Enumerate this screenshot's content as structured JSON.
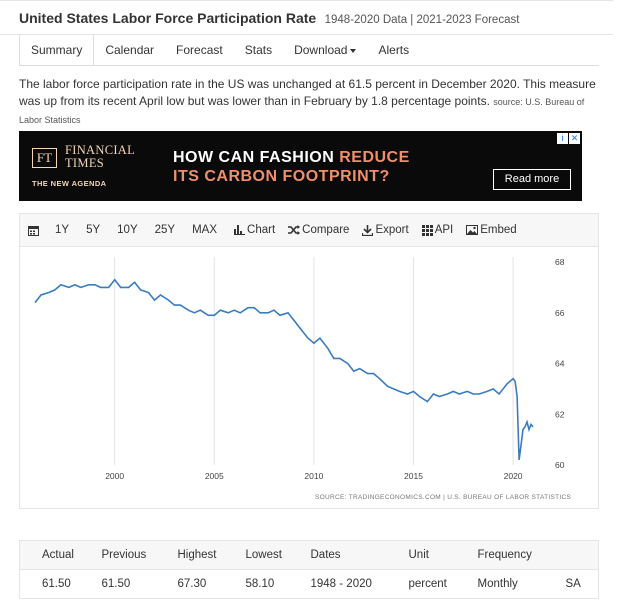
{
  "header": {
    "title": "United States Labor Force Participation Rate",
    "subtitle": "1948-2020 Data | 2021-2023 Forecast"
  },
  "tabs": [
    {
      "label": "Summary",
      "active": true
    },
    {
      "label": "Calendar"
    },
    {
      "label": "Forecast"
    },
    {
      "label": "Stats"
    },
    {
      "label": "Download"
    },
    {
      "label": "Alerts"
    }
  ],
  "summary": {
    "text": "The labor force participation rate in the US was unchanged at 61.5 percent in December 2020. This measure was up from its recent April low but was lower than in February by 1.8 percentage points.",
    "source": "source: U.S. Bureau of Labor Statistics"
  },
  "ad": {
    "logo": "FT",
    "brand_line1": "FINANCIAL",
    "brand_line2": "TIMES",
    "tagline": "THE NEW AGENDA",
    "headline_part1": "HOW CAN FASHION ",
    "headline_part2": "REDUCE",
    "headline_line2": "ITS CARBON FOOTPRINT?",
    "cta": "Read more",
    "badge_info": "i",
    "badge_close": "✕",
    "accent_color": "#f28e6a"
  },
  "toolbar": {
    "ranges": [
      "1Y",
      "5Y",
      "10Y",
      "25Y",
      "MAX"
    ],
    "chart": "Chart",
    "compare": "Compare",
    "export": "Export",
    "api": "API",
    "embed": "Embed"
  },
  "chart_data": {
    "type": "line",
    "title": "",
    "xlabel": "",
    "ylabel": "",
    "source_note": "SOURCE: TRADINGECONOMICS.COM | U.S. BUREAU OF LABOR STATISTICS",
    "xlim": [
      1995.9,
      2021.1
    ],
    "ylim": [
      60,
      68
    ],
    "x_ticks": [
      2000,
      2005,
      2010,
      2015,
      2020
    ],
    "y_ticks": [
      60,
      62,
      64,
      66,
      68
    ],
    "y_axis_side": "right",
    "grid": "vertical",
    "line_color": "#3a7cbf",
    "series": [
      {
        "points": [
          [
            1996.0,
            66.4
          ],
          [
            1996.3,
            66.7
          ],
          [
            1996.7,
            66.8
          ],
          [
            1997.0,
            66.9
          ],
          [
            1997.3,
            67.1
          ],
          [
            1997.7,
            67.0
          ],
          [
            1998.0,
            67.1
          ],
          [
            1998.3,
            67.0
          ],
          [
            1998.7,
            67.1
          ],
          [
            1999.0,
            67.1
          ],
          [
            1999.3,
            67.0
          ],
          [
            1999.7,
            67.0
          ],
          [
            2000.0,
            67.3
          ],
          [
            2000.3,
            67.0
          ],
          [
            2000.7,
            67.0
          ],
          [
            2001.0,
            67.2
          ],
          [
            2001.3,
            66.9
          ],
          [
            2001.7,
            66.8
          ],
          [
            2002.0,
            66.5
          ],
          [
            2002.3,
            66.7
          ],
          [
            2002.7,
            66.5
          ],
          [
            2003.0,
            66.3
          ],
          [
            2003.3,
            66.3
          ],
          [
            2003.7,
            66.1
          ],
          [
            2004.0,
            66.0
          ],
          [
            2004.3,
            66.1
          ],
          [
            2004.7,
            65.9
          ],
          [
            2005.0,
            65.9
          ],
          [
            2005.3,
            66.1
          ],
          [
            2005.7,
            66.0
          ],
          [
            2006.0,
            66.1
          ],
          [
            2006.3,
            66.0
          ],
          [
            2006.7,
            66.2
          ],
          [
            2007.0,
            66.2
          ],
          [
            2007.3,
            66.0
          ],
          [
            2007.7,
            66.0
          ],
          [
            2008.0,
            66.1
          ],
          [
            2008.3,
            65.9
          ],
          [
            2008.7,
            66.0
          ],
          [
            2009.0,
            65.7
          ],
          [
            2009.3,
            65.4
          ],
          [
            2009.7,
            65.0
          ],
          [
            2010.0,
            64.8
          ],
          [
            2010.3,
            65.0
          ],
          [
            2010.7,
            64.6
          ],
          [
            2011.0,
            64.2
          ],
          [
            2011.3,
            64.2
          ],
          [
            2011.7,
            64.0
          ],
          [
            2012.0,
            63.7
          ],
          [
            2012.3,
            63.8
          ],
          [
            2012.7,
            63.6
          ],
          [
            2013.0,
            63.6
          ],
          [
            2013.3,
            63.4
          ],
          [
            2013.7,
            63.1
          ],
          [
            2014.0,
            63.0
          ],
          [
            2014.3,
            62.9
          ],
          [
            2014.7,
            62.8
          ],
          [
            2015.0,
            62.9
          ],
          [
            2015.3,
            62.7
          ],
          [
            2015.7,
            62.5
          ],
          [
            2016.0,
            62.8
          ],
          [
            2016.3,
            62.7
          ],
          [
            2016.7,
            62.8
          ],
          [
            2017.0,
            62.9
          ],
          [
            2017.3,
            62.8
          ],
          [
            2017.7,
            62.9
          ],
          [
            2018.0,
            62.8
          ],
          [
            2018.3,
            62.8
          ],
          [
            2018.7,
            62.9
          ],
          [
            2019.0,
            63.0
          ],
          [
            2019.3,
            62.8
          ],
          [
            2019.7,
            63.2
          ],
          [
            2020.0,
            63.4
          ],
          [
            2020.1,
            63.3
          ],
          [
            2020.2,
            62.7
          ],
          [
            2020.3,
            60.2
          ],
          [
            2020.4,
            60.8
          ],
          [
            2020.5,
            61.4
          ],
          [
            2020.6,
            61.5
          ],
          [
            2020.7,
            61.7
          ],
          [
            2020.8,
            61.4
          ],
          [
            2020.9,
            61.6
          ],
          [
            2021.0,
            61.5
          ]
        ]
      }
    ]
  },
  "stats": {
    "headers": [
      "Actual",
      "Previous",
      "Highest",
      "Lowest",
      "Dates",
      "Unit",
      "Frequency",
      ""
    ],
    "values": [
      "61.50",
      "61.50",
      "67.30",
      "58.10",
      "1948 - 2020",
      "percent",
      "Monthly",
      "SA"
    ]
  }
}
